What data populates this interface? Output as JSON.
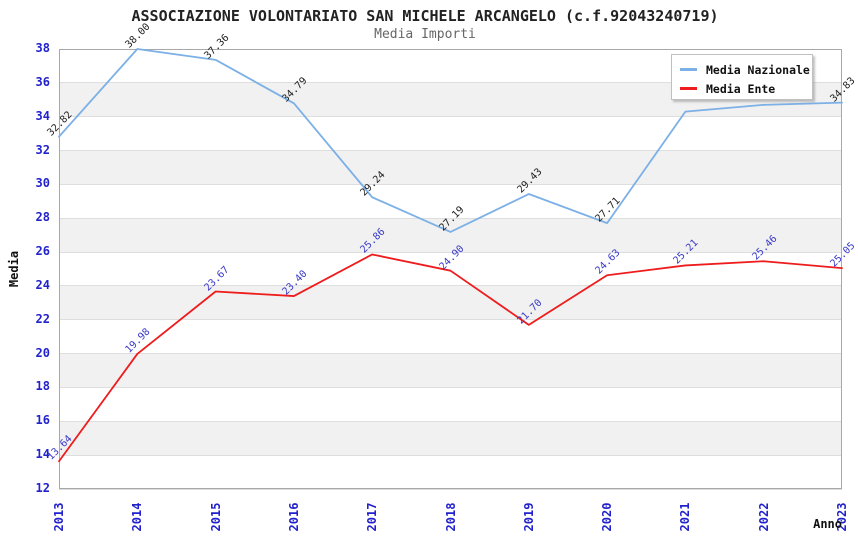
{
  "header": {
    "title": "ASSOCIAZIONE VOLONTARIATO SAN MICHELE ARCANGELO (c.f.92043240719)",
    "subtitle": "Media Importi"
  },
  "axes": {
    "y_label": "Media",
    "x_label": "Anno",
    "y_ticks": [
      12,
      14,
      16,
      18,
      20,
      22,
      24,
      26,
      28,
      30,
      32,
      34,
      36,
      38
    ],
    "x_ticks": [
      "2013",
      "2014",
      "2015",
      "2016",
      "2017",
      "2018",
      "2019",
      "2020",
      "2021",
      "2022",
      "2023"
    ]
  },
  "legend": {
    "position": "top-right",
    "items": [
      {
        "label": "Media Nazionale",
        "color": "#7cb0e6"
      },
      {
        "label": "Media Ente",
        "color": "#ee1c1c"
      }
    ]
  },
  "chart_data": {
    "type": "line",
    "title": "ASSOCIAZIONE VOLONTARIATO SAN MICHELE ARCANGELO (c.f.92043240719)",
    "subtitle": "Media Importi",
    "xlabel": "Anno",
    "ylabel": "Media",
    "x": [
      "2013",
      "2014",
      "2015",
      "2016",
      "2017",
      "2018",
      "2019",
      "2020",
      "2021",
      "2022",
      "2023"
    ],
    "series": [
      {
        "name": "Media Nazionale",
        "color": "#7cb0e6",
        "label_color": "#222222",
        "values": [
          32.82,
          38.0,
          37.36,
          34.79,
          29.24,
          27.19,
          29.43,
          27.71,
          34.3,
          34.7,
          34.83
        ],
        "labels": [
          "32.82",
          "38.00",
          "37.36",
          "34.79",
          "29.24",
          "27.19",
          "29.43",
          "27.71",
          "",
          "",
          "34.83"
        ]
      },
      {
        "name": "Media Ente",
        "color": "#ee1c1c",
        "label_color": "#3a3ac8",
        "values": [
          13.64,
          19.98,
          23.67,
          23.4,
          25.86,
          24.9,
          21.7,
          24.63,
          25.21,
          25.46,
          25.05
        ],
        "labels": [
          "13.64",
          "19.98",
          "23.67",
          "23.40",
          "25.86",
          "24.90",
          "21.70",
          "24.63",
          "25.21",
          "25.46",
          "25.05"
        ]
      }
    ],
    "ylim": [
      12,
      38
    ],
    "y_tick_step": 2,
    "grid": "horizontal-bands",
    "legend_position": "top-right"
  },
  "colors": {
    "tick_label": "#2222cc",
    "band_gray": "#f1f1f1",
    "gridline": "#dedede",
    "plot_border": "#a8a8a8",
    "title": "#222222",
    "subtitle": "#666666"
  }
}
